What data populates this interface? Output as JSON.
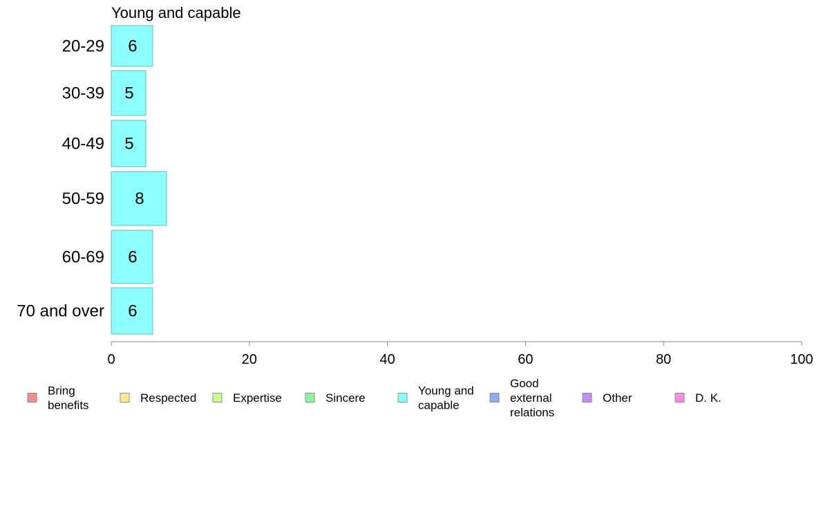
{
  "chart_data": {
    "type": "bar",
    "orientation": "horizontal",
    "title": "Young and capable",
    "categories": [
      "20-29",
      "30-39",
      "40-49",
      "50-59",
      "60-69",
      "70 and over"
    ],
    "series": [
      {
        "name": "Young and capable",
        "values": [
          6,
          5,
          5,
          8,
          6,
          6
        ],
        "color": "#8cffff"
      }
    ],
    "data_labels": [
      "6",
      "5",
      "5",
      "8",
      "6",
      "6"
    ],
    "xlim": [
      0,
      100
    ],
    "x_ticks": [
      0,
      20,
      40,
      60,
      80,
      100
    ],
    "grid": false,
    "legend": {
      "position": "bottom",
      "items": [
        {
          "label": "Bring benefits",
          "lines": [
            "Bring",
            "benefits"
          ],
          "color": "#f98b8b"
        },
        {
          "label": "Respected",
          "lines": [
            "Respected"
          ],
          "color": "#ffe98c"
        },
        {
          "label": "Expertise",
          "lines": [
            "Expertise"
          ],
          "color": "#c9ff8c"
        },
        {
          "label": "Sincere",
          "lines": [
            "Sincere"
          ],
          "color": "#8cf5a5"
        },
        {
          "label": "Young and capable",
          "lines": [
            "Young and",
            "capable"
          ],
          "color": "#8cffff"
        },
        {
          "label": "Good external relations",
          "lines": [
            "Good",
            "external",
            "relations"
          ],
          "color": "#8caaf9"
        },
        {
          "label": "Other",
          "lines": [
            "Other"
          ],
          "color": "#c38cf9"
        },
        {
          "label": "D. K.",
          "lines": [
            "D. K."
          ],
          "color": "#f98ce9"
        }
      ]
    }
  }
}
